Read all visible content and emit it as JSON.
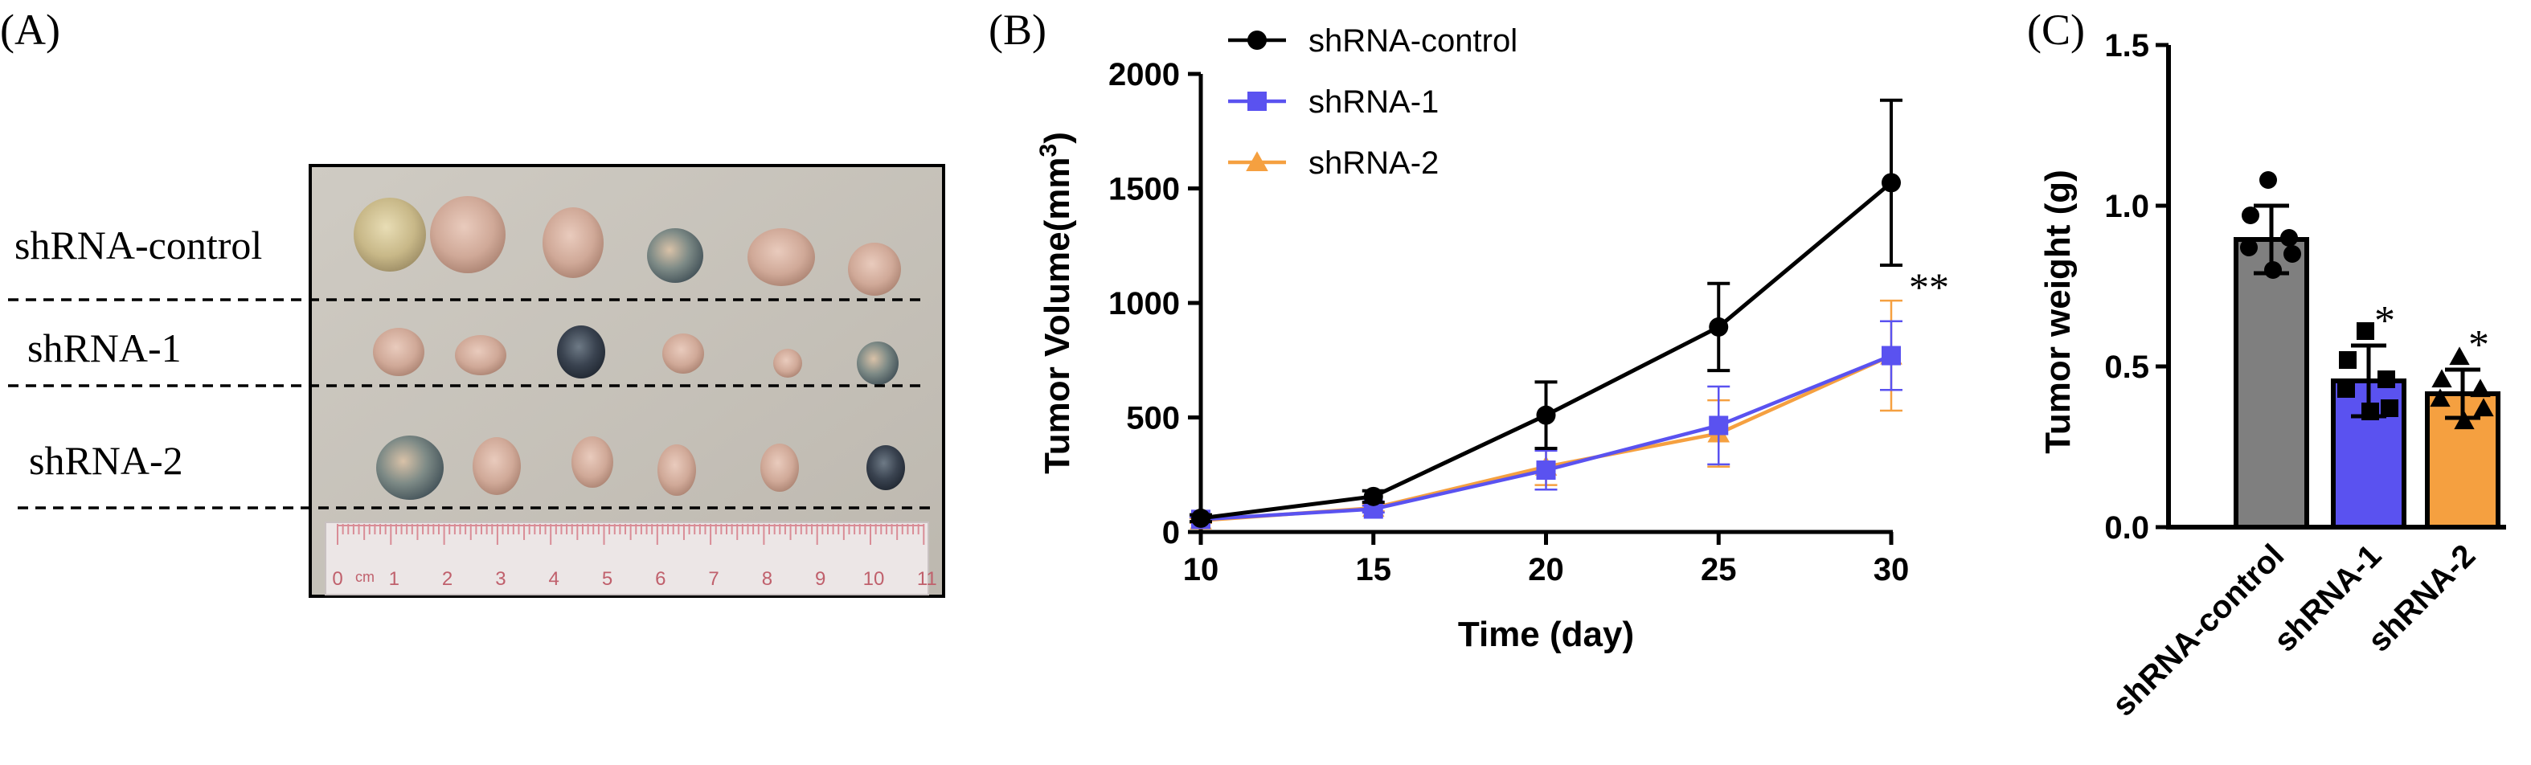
{
  "panel_labels": {
    "a": "(A)",
    "b": "(B)",
    "c": "(C)"
  },
  "photo": {
    "rows": [
      "shRNA-control",
      "shRNA-1",
      "shRNA-2"
    ],
    "ruler_numbers": [
      "0",
      "1",
      "2",
      "3",
      "4",
      "5",
      "6",
      "7",
      "8",
      "9",
      "10",
      "11"
    ],
    "ruler_unit": "cm"
  },
  "chart_data": [
    {
      "type": "line",
      "title": "",
      "xlabel": "Time (day)",
      "ylabel": "Tumor Volume(mm",
      "ylabel_superscript": "3",
      "ylabel_close": ")",
      "x": [
        10,
        15,
        20,
        25,
        30
      ],
      "xlim": [
        10,
        30
      ],
      "ylim": [
        0,
        2000
      ],
      "xticks": [
        10,
        15,
        20,
        25,
        30
      ],
      "yticks": [
        0,
        500,
        1000,
        1500,
        2000
      ],
      "legend_position": "top-left",
      "series": [
        {
          "name": "shRNA-control",
          "color": "#000000",
          "marker": "circle",
          "values": [
            60,
            155,
            510,
            895,
            1525
          ],
          "errors": [
            15,
            25,
            145,
            190,
            360
          ]
        },
        {
          "name": "shRNA-1",
          "color": "#5a52f0",
          "marker": "square",
          "values": [
            55,
            100,
            270,
            465,
            770
          ],
          "errors": [
            10,
            15,
            85,
            170,
            150
          ]
        },
        {
          "name": "shRNA-2",
          "color": "#f5a040",
          "marker": "triangle",
          "values": [
            50,
            105,
            285,
            430,
            770
          ],
          "errors": [
            10,
            15,
            80,
            145,
            240
          ]
        }
      ],
      "annotation": "**"
    },
    {
      "type": "bar",
      "title": "",
      "xlabel": "",
      "ylabel": "Tumor weight (g)",
      "categories": [
        "shRNA-control",
        "shRNA-1",
        "shRNA-2"
      ],
      "values": [
        0.895,
        0.455,
        0.415
      ],
      "errors": [
        0.105,
        0.11,
        0.075
      ],
      "colors": [
        "#7f7f7f",
        "#5a52f0",
        "#f5a040"
      ],
      "markers": [
        "circle",
        "square",
        "triangle"
      ],
      "points": [
        [
          1.08,
          0.97,
          0.9,
          0.87,
          0.85,
          0.8
        ],
        [
          0.61,
          0.52,
          0.46,
          0.43,
          0.37,
          0.36
        ],
        [
          0.53,
          0.46,
          0.43,
          0.4,
          0.37,
          0.33
        ]
      ],
      "ylim": [
        0,
        1.5
      ],
      "yticks": [
        "0.0",
        "0.5",
        "1.0",
        "1.5"
      ],
      "significance": [
        "",
        "*",
        "*"
      ]
    }
  ]
}
